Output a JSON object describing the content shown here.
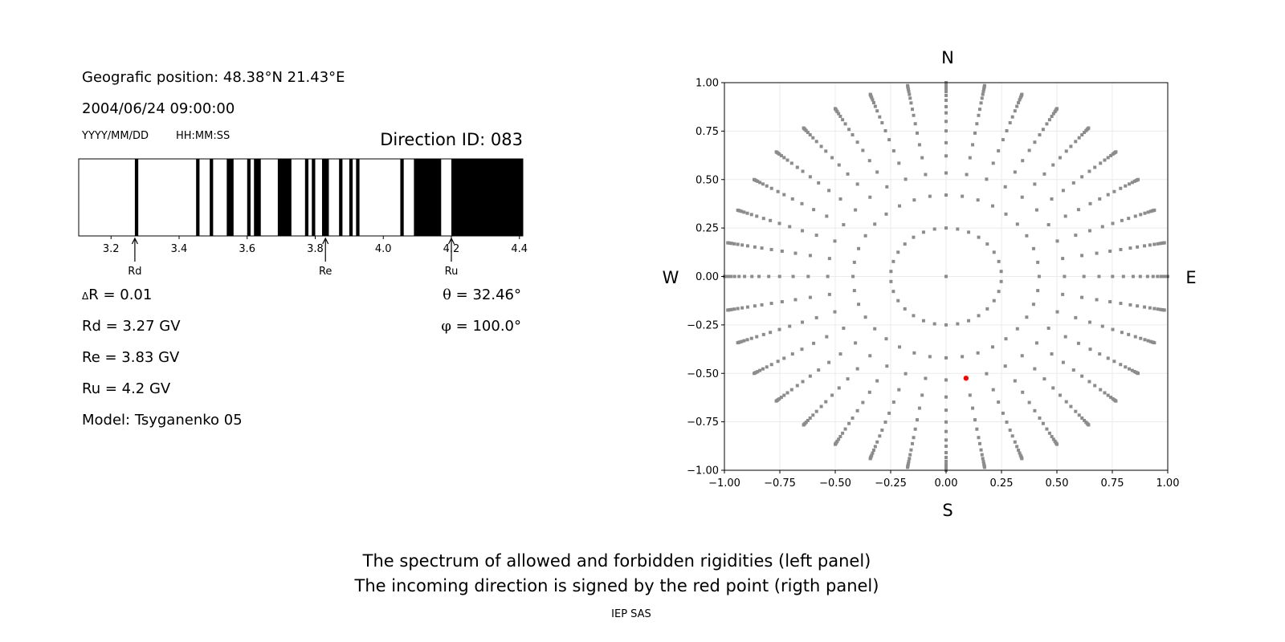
{
  "left_panel": {
    "position": "Geografic position: 48.38°N 21.43°E",
    "datetime": "2004/06/24 09:00:00",
    "date_format": "YYYY/MM/DD",
    "time_format": "HH:MM:SS",
    "direction_id": "Direction ID: 083",
    "delta_r_symbol": "Δ",
    "delta_r": "R = 0.01",
    "rd": "Rd = 3.27 GV",
    "re": "Re = 3.83 GV",
    "ru": "Ru = 4.2 GV",
    "model": "Model: Tsyganenko 05",
    "theta_symbol": "θ",
    "theta": " = 32.46°",
    "phi_symbol": "φ",
    "phi": " = 100.0°"
  },
  "right_panel": {
    "north": "N",
    "south": "S",
    "west": "W",
    "east": "E"
  },
  "caption": {
    "line1": "The spectrum of allowed and forbidden rigidities (left panel)",
    "line2": "The incoming direction is signed by the red point (rigth panel)",
    "credit": "IEP SAS"
  },
  "chart_data": [
    {
      "type": "bar",
      "description_kind": "rigidity spectrum (black = forbidden, white = allowed)",
      "xlim": [
        3.105,
        4.41
      ],
      "xticks": [
        3.2,
        3.4,
        3.6,
        3.8,
        4.0,
        4.2,
        4.4
      ],
      "xtick_labels": [
        "3.2",
        "3.4",
        "3.6",
        "3.8",
        "4.0",
        "4.2",
        "4.4"
      ],
      "forbidden_bands": [
        [
          3.27,
          3.28
        ],
        [
          3.45,
          3.46
        ],
        [
          3.49,
          3.5
        ],
        [
          3.54,
          3.56
        ],
        [
          3.6,
          3.61
        ],
        [
          3.62,
          3.64
        ],
        [
          3.69,
          3.73
        ],
        [
          3.77,
          3.78
        ],
        [
          3.79,
          3.8
        ],
        [
          3.82,
          3.84
        ],
        [
          3.87,
          3.88
        ],
        [
          3.9,
          3.91
        ],
        [
          3.92,
          3.93
        ],
        [
          4.05,
          4.06
        ],
        [
          4.09,
          4.17
        ],
        [
          4.2,
          4.41
        ]
      ],
      "band_color": "#000000",
      "markers": [
        {
          "label": "Rd",
          "value": 3.27
        },
        {
          "label": "Re",
          "value": 3.83
        },
        {
          "label": "Ru",
          "value": 4.2
        }
      ]
    },
    {
      "type": "scatter",
      "xlim": [
        -1,
        1
      ],
      "ylim": [
        -1,
        1
      ],
      "ticks": [
        -1,
        -0.75,
        -0.5,
        -0.25,
        0,
        0.25,
        0.5,
        0.75,
        1
      ],
      "tick_labels": [
        "−1.00",
        "−0.75",
        "−0.50",
        "−0.25",
        "0.00",
        "0.25",
        "0.50",
        "0.75",
        "1.00"
      ],
      "grid": true,
      "grid_color": "#ebebeb",
      "point_color": "#8c8c8c",
      "center_point": [
        0,
        0
      ],
      "inner_ring": {
        "radius": 0.25,
        "azimuth_step_deg": 12
      },
      "spokes": {
        "azimuth_step_deg": 10,
        "radii": [
          0.42,
          0.534,
          0.622,
          0.69,
          0.751,
          0.8,
          0.844,
          0.876,
          0.909,
          0.934,
          0.954,
          0.97,
          0.982,
          0.99,
          0.996,
          1.0
        ]
      },
      "highlight_point": {
        "x": 0.09,
        "y": -0.525,
        "color": "#ff0000"
      }
    }
  ]
}
